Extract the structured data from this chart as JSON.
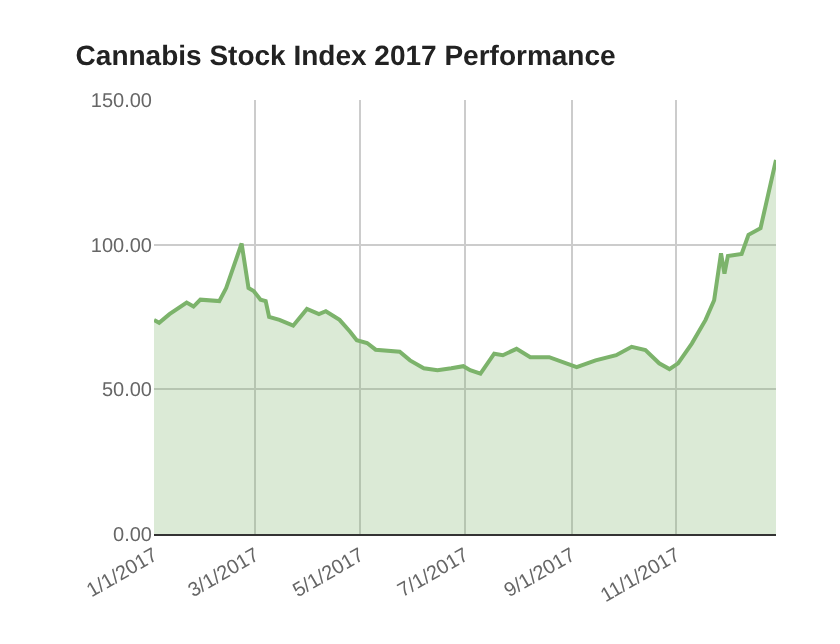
{
  "chart_data": {
    "type": "area",
    "title": "Cannabis Stock Index 2017 Performance",
    "x": [
      "2017-01-01",
      "2017-01-04",
      "2017-01-10",
      "2017-01-20",
      "2017-01-24",
      "2017-01-28",
      "2017-02-08",
      "2017-02-12",
      "2017-02-21",
      "2017-02-25",
      "2017-02-28",
      "2017-03-04",
      "2017-03-07",
      "2017-03-09",
      "2017-03-15",
      "2017-03-23",
      "2017-03-31",
      "2017-04-07",
      "2017-04-11",
      "2017-04-19",
      "2017-04-25",
      "2017-04-29",
      "2017-05-05",
      "2017-05-10",
      "2017-05-24",
      "2017-05-30",
      "2017-06-07",
      "2017-06-15",
      "2017-06-23",
      "2017-06-30",
      "2017-07-04",
      "2017-07-10",
      "2017-07-18",
      "2017-07-23",
      "2017-07-31",
      "2017-08-08",
      "2017-08-19",
      "2017-09-04",
      "2017-09-15",
      "2017-09-27",
      "2017-10-06",
      "2017-10-14",
      "2017-10-22",
      "2017-10-28",
      "2017-11-02",
      "2017-11-10",
      "2017-11-18",
      "2017-11-23",
      "2017-11-27",
      "2017-11-29",
      "2017-12-01",
      "2017-12-09",
      "2017-12-13",
      "2017-12-20",
      "2017-12-29"
    ],
    "series": [
      {
        "color": "#7cb36b",
        "values": [
          74,
          73,
          76,
          80,
          78.6,
          81,
          80.5,
          85,
          100.4,
          85,
          84,
          81,
          80.5,
          75,
          74,
          72,
          77.8,
          76,
          77,
          74,
          70,
          67,
          66,
          63.7,
          63,
          60,
          57.3,
          56.6,
          57.3,
          58,
          56.6,
          55.4,
          62.3,
          61.8,
          64,
          61.1,
          61.1,
          57.7,
          60,
          61.8,
          64.7,
          63.6,
          59,
          57,
          59,
          65.8,
          74,
          80.8,
          97,
          90,
          96.1,
          96.8,
          103.4,
          105.7,
          129.3
        ]
      }
    ],
    "xlim": [
      "2017-01-01",
      "2017-12-29"
    ],
    "xticks": [
      {
        "value": "2017-01-01",
        "label": "1/1/2017"
      },
      {
        "value": "2017-03-01",
        "label": "3/1/2017"
      },
      {
        "value": "2017-05-01",
        "label": "5/1/2017"
      },
      {
        "value": "2017-07-01",
        "label": "7/1/2017"
      },
      {
        "value": "2017-09-01",
        "label": "9/1/2017"
      },
      {
        "value": "2017-11-01",
        "label": "11/1/2017"
      }
    ],
    "ylim": [
      0,
      150
    ],
    "yticks": [
      {
        "value": 0,
        "label": "0.00"
      },
      {
        "value": 50,
        "label": "50.00"
      },
      {
        "value": 100,
        "label": "100.00"
      },
      {
        "value": 150,
        "label": "150.00"
      }
    ],
    "grid": true,
    "legend": false
  }
}
